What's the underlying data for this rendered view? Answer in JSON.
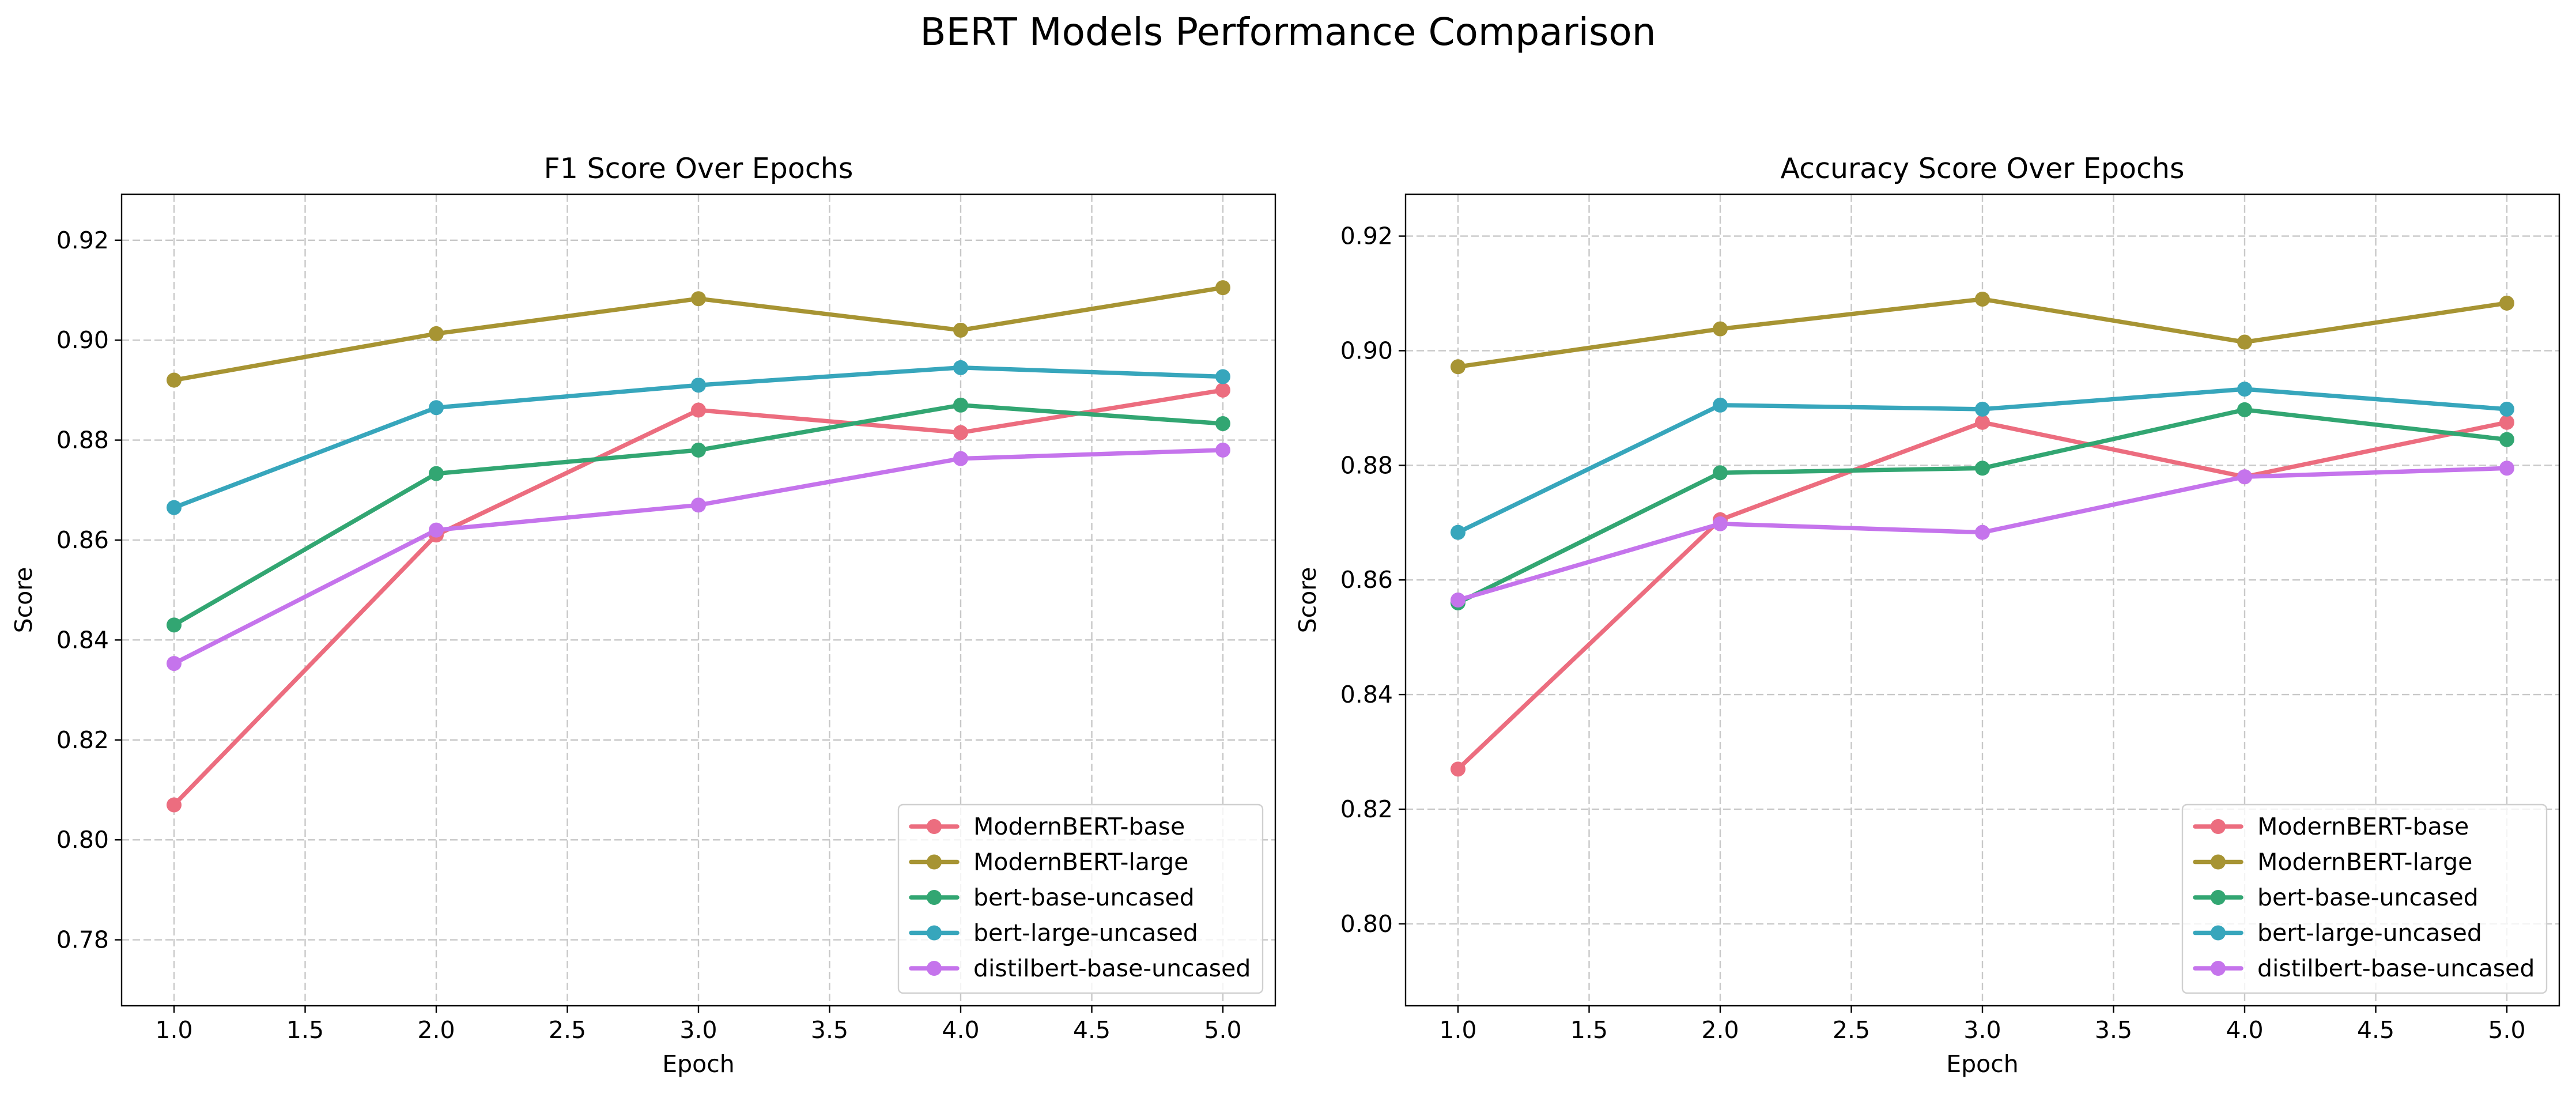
{
  "figure": {
    "suptitle": "BERT Models Performance Comparison"
  },
  "colors": {
    "ModernBERT-base": "#ec6d7f",
    "ModernBERT-large": "#a79433",
    "bert-base-uncased": "#32a672",
    "bert-large-uncased": "#37a6bc",
    "distilbert-base-uncased": "#c574ec"
  },
  "chart_data": [
    {
      "type": "line",
      "title": "F1 Score Over Epochs",
      "xlabel": "Epoch",
      "ylabel": "Score",
      "xlim": [
        0.8,
        5.2
      ],
      "ylim": [
        0.7668,
        0.9292
      ],
      "xticks": [
        1.0,
        1.5,
        2.0,
        2.5,
        3.0,
        3.5,
        4.0,
        4.5,
        5.0
      ],
      "xtick_labels": [
        "1.0",
        "1.5",
        "2.0",
        "2.5",
        "3.0",
        "3.5",
        "4.0",
        "4.5",
        "5.0"
      ],
      "yticks": [
        0.78,
        0.8,
        0.82,
        0.84,
        0.86,
        0.88,
        0.9,
        0.92
      ],
      "ytick_labels": [
        "0.78",
        "0.80",
        "0.82",
        "0.84",
        "0.86",
        "0.88",
        "0.90",
        "0.92"
      ],
      "grid": true,
      "legend_position": "lower-right",
      "x": [
        1.0,
        2.0,
        3.0,
        4.0,
        5.0
      ],
      "series": [
        {
          "name": "ModernBERT-base",
          "values": [
            0.807,
            0.861,
            0.886,
            0.8815,
            0.89
          ]
        },
        {
          "name": "ModernBERT-large",
          "values": [
            0.892,
            0.9013,
            0.9083,
            0.902,
            0.9105
          ]
        },
        {
          "name": "bert-base-uncased",
          "values": [
            0.843,
            0.8733,
            0.878,
            0.887,
            0.8833
          ]
        },
        {
          "name": "bert-large-uncased",
          "values": [
            0.8665,
            0.8865,
            0.891,
            0.8945,
            0.8927
          ]
        },
        {
          "name": "distilbert-base-uncased",
          "values": [
            0.8353,
            0.862,
            0.867,
            0.8763,
            0.878
          ]
        }
      ]
    },
    {
      "type": "line",
      "title": "Accuracy Score Over Epochs",
      "xlabel": "Epoch",
      "ylabel": "Score",
      "xlim": [
        0.8,
        5.2
      ],
      "ylim": [
        0.7857,
        0.9273
      ],
      "xticks": [
        1.0,
        1.5,
        2.0,
        2.5,
        3.0,
        3.5,
        4.0,
        4.5,
        5.0
      ],
      "xtick_labels": [
        "1.0",
        "1.5",
        "2.0",
        "2.5",
        "3.0",
        "3.5",
        "4.0",
        "4.5",
        "5.0"
      ],
      "yticks": [
        0.8,
        0.82,
        0.84,
        0.86,
        0.88,
        0.9,
        0.92
      ],
      "ytick_labels": [
        "0.80",
        "0.82",
        "0.84",
        "0.86",
        "0.88",
        "0.90",
        "0.92"
      ],
      "grid": true,
      "legend_position": "lower-right",
      "x": [
        1.0,
        2.0,
        3.0,
        4.0,
        5.0
      ],
      "series": [
        {
          "name": "ModernBERT-base",
          "values": [
            0.827,
            0.8705,
            0.8875,
            0.878,
            0.8875
          ]
        },
        {
          "name": "ModernBERT-large",
          "values": [
            0.8972,
            0.9038,
            0.909,
            0.9015,
            0.9083
          ]
        },
        {
          "name": "bert-base-uncased",
          "values": [
            0.856,
            0.8787,
            0.8795,
            0.8897,
            0.8845
          ]
        },
        {
          "name": "bert-large-uncased",
          "values": [
            0.8683,
            0.8905,
            0.8898,
            0.8933,
            0.8898
          ]
        },
        {
          "name": "distilbert-base-uncased",
          "values": [
            0.8565,
            0.8698,
            0.8683,
            0.878,
            0.8795
          ]
        }
      ]
    }
  ]
}
